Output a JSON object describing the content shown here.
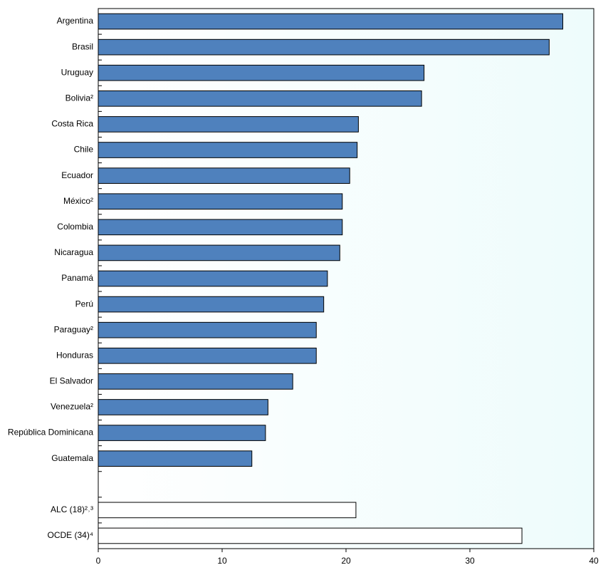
{
  "chart_data": {
    "type": "hbar",
    "categories": [
      "Argentina",
      "Brasil",
      "Uruguay",
      "Bolivia²",
      "Costa Rica",
      "Chile",
      "Ecuador",
      "México²",
      "Colombia",
      "Nicaragua",
      "Panamá",
      "Perú",
      "Paraguay²",
      "Honduras",
      "El Salvador",
      "Venezuela²",
      "República Dominicana",
      "Guatemala",
      null,
      "ALC (18)²˒³",
      "OCDE (34)⁴"
    ],
    "values": [
      37.5,
      36.4,
      26.3,
      26.1,
      21.0,
      20.9,
      20.3,
      19.7,
      19.7,
      19.5,
      18.5,
      18.2,
      17.6,
      17.6,
      15.7,
      13.7,
      13.5,
      12.4,
      null,
      20.8,
      34.2
    ],
    "colors": [
      "#4f81bd",
      "#4f81bd",
      "#4f81bd",
      "#4f81bd",
      "#4f81bd",
      "#4f81bd",
      "#4f81bd",
      "#4f81bd",
      "#4f81bd",
      "#4f81bd",
      "#4f81bd",
      "#4f81bd",
      "#4f81bd",
      "#4f81bd",
      "#4f81bd",
      "#4f81bd",
      "#4f81bd",
      "#4f81bd",
      null,
      "#ffffff",
      "#ffffff"
    ],
    "xlim": [
      0,
      40
    ],
    "xticks": [
      0,
      10,
      20,
      30,
      40
    ],
    "grid": false
  }
}
